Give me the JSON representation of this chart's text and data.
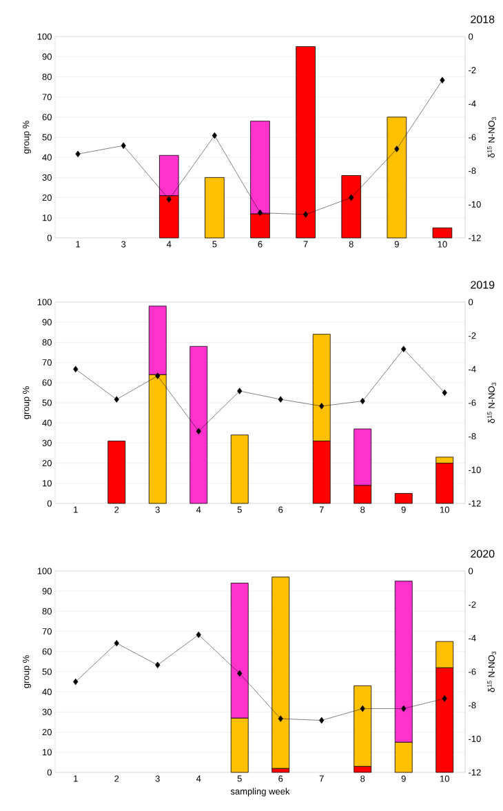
{
  "chart_data": [
    {
      "type": "bar",
      "title": "2018",
      "ylabel": "group %",
      "y2label": "δ$^{15}$ N-NO$_{3}$",
      "stacked": true,
      "grid": "y",
      "categories": [
        "1",
        "3",
        "4",
        "5",
        "6",
        "7",
        "8",
        "9",
        "10"
      ],
      "ylim": [
        0,
        100
      ],
      "yticks": [
        0,
        10,
        20,
        30,
        40,
        50,
        60,
        70,
        80,
        90,
        100
      ],
      "y2lim": [
        -12,
        0
      ],
      "y2ticks": [
        -12,
        -10,
        -8,
        -6,
        -4,
        -2,
        0
      ],
      "series": [
        {
          "color": "#ff0000",
          "values": [
            null,
            null,
            21,
            null,
            12,
            95,
            31,
            null,
            5
          ]
        },
        {
          "color": "#ffc000",
          "values": [
            null,
            null,
            null,
            30,
            null,
            null,
            null,
            60,
            null
          ]
        },
        {
          "color": "#ff33cc",
          "values": [
            null,
            null,
            20,
            null,
            46,
            null,
            null,
            null,
            null
          ]
        },
        {
          "type": "line",
          "axis": "y2",
          "color": "#000000",
          "marker": "diamond",
          "line_style": "solid",
          "values": [
            -7.0,
            -6.5,
            -9.7,
            -5.9,
            -10.5,
            -10.6,
            -9.6,
            -6.7,
            -2.6
          ]
        }
      ]
    },
    {
      "type": "bar",
      "title": "2019",
      "ylabel": "group %",
      "y2label": "δ$^{15}$ N-NO$_{3}$",
      "stacked": true,
      "grid": "y",
      "categories": [
        "1",
        "2",
        "3",
        "4",
        "5",
        "6",
        "7",
        "8",
        "9",
        "10"
      ],
      "ylim": [
        0,
        100
      ],
      "yticks": [
        0,
        10,
        20,
        30,
        40,
        50,
        60,
        70,
        80,
        90,
        100
      ],
      "y2lim": [
        -12,
        0
      ],
      "y2ticks": [
        -12,
        -10,
        -8,
        -6,
        -4,
        -2,
        0
      ],
      "series": [
        {
          "color": "#ff0000",
          "values": [
            null,
            31,
            null,
            null,
            null,
            null,
            31,
            9,
            5,
            20
          ]
        },
        {
          "color": "#ffc000",
          "values": [
            null,
            null,
            64,
            null,
            34,
            null,
            53,
            null,
            null,
            3
          ]
        },
        {
          "color": "#ff33cc",
          "values": [
            null,
            null,
            34,
            78,
            null,
            null,
            null,
            28,
            null,
            null
          ]
        },
        {
          "type": "line",
          "axis": "y2",
          "color": "#000000",
          "marker": "diamond",
          "line_style": "solid",
          "values": [
            -4.0,
            -5.8,
            -4.4,
            -7.7,
            -5.3,
            -5.8,
            -6.2,
            -5.9,
            -2.8,
            -5.4
          ]
        }
      ]
    },
    {
      "type": "bar",
      "title": "2020",
      "xlabel": "sampling week",
      "ylabel": "group %",
      "y2label": "δ$^{15}$ N-NO$_{3}$",
      "stacked": true,
      "grid": "y",
      "categories": [
        "1",
        "2",
        "3",
        "4",
        "5",
        "6",
        "7",
        "8",
        "9",
        "10"
      ],
      "ylim": [
        0,
        100
      ],
      "yticks": [
        0,
        10,
        20,
        30,
        40,
        50,
        60,
        70,
        80,
        90,
        100
      ],
      "y2lim": [
        -12,
        0
      ],
      "y2ticks": [
        -12,
        -10,
        -8,
        -6,
        -4,
        -2,
        0
      ],
      "series": [
        {
          "color": "#ff0000",
          "values": [
            null,
            null,
            null,
            null,
            null,
            2,
            null,
            3,
            null,
            52
          ]
        },
        {
          "color": "#ffc000",
          "values": [
            null,
            null,
            null,
            null,
            27,
            95,
            null,
            40,
            15,
            13
          ]
        },
        {
          "color": "#ff33cc",
          "values": [
            null,
            null,
            null,
            null,
            67,
            null,
            null,
            null,
            80,
            null
          ]
        },
        {
          "type": "line",
          "axis": "y2",
          "color": "#000000",
          "marker": "diamond",
          "line_style": "solid",
          "values": [
            -6.6,
            -4.3,
            -5.6,
            -3.8,
            -6.1,
            -8.8,
            -8.9,
            -8.2,
            -8.2,
            -7.6
          ]
        }
      ]
    }
  ]
}
